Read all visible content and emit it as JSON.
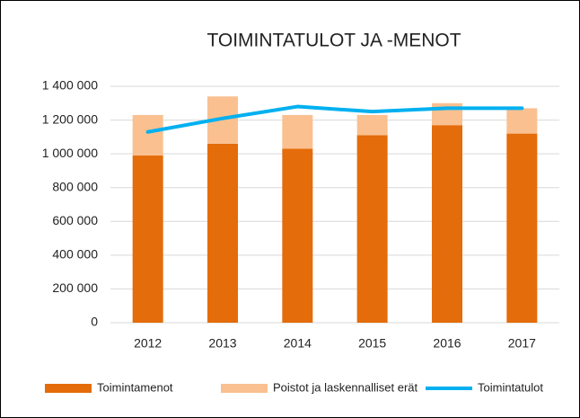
{
  "chart_data": {
    "type": "bar",
    "stacked": true,
    "title": "TOIMINTATULOT  JA -MENOT",
    "categories": [
      "2012",
      "2013",
      "2014",
      "2015",
      "2016",
      "2017"
    ],
    "series": [
      {
        "name": "Toimintamenot",
        "type": "bar",
        "color": "#e46c0a",
        "values": [
          990000,
          1060000,
          1030000,
          1110000,
          1170000,
          1120000
        ]
      },
      {
        "name": "Poistot ja laskennalliset erät",
        "type": "bar",
        "color": "#fac090",
        "values": [
          240000,
          280000,
          200000,
          120000,
          130000,
          150000
        ]
      },
      {
        "name": "Toimintatulot",
        "type": "line",
        "color": "#00b0f0",
        "values": [
          1130000,
          1210000,
          1280000,
          1250000,
          1270000,
          1270000
        ]
      }
    ],
    "ylim": [
      0,
      1400000
    ],
    "yticks": [
      0,
      {
        "value": 200000,
        "label": "200 000"
      },
      {
        "value": 400000,
        "label": "400 000"
      },
      {
        "value": 600000,
        "label": "600 000"
      },
      {
        "value": 800000,
        "label": "800 000"
      },
      {
        "value": 1000000,
        "label": "1 000 000"
      },
      {
        "value": 1200000,
        "label": "1 200 000"
      },
      {
        "value": 1400000,
        "label": "1 400 000"
      }
    ],
    "grid": true,
    "legend": "bottom"
  }
}
